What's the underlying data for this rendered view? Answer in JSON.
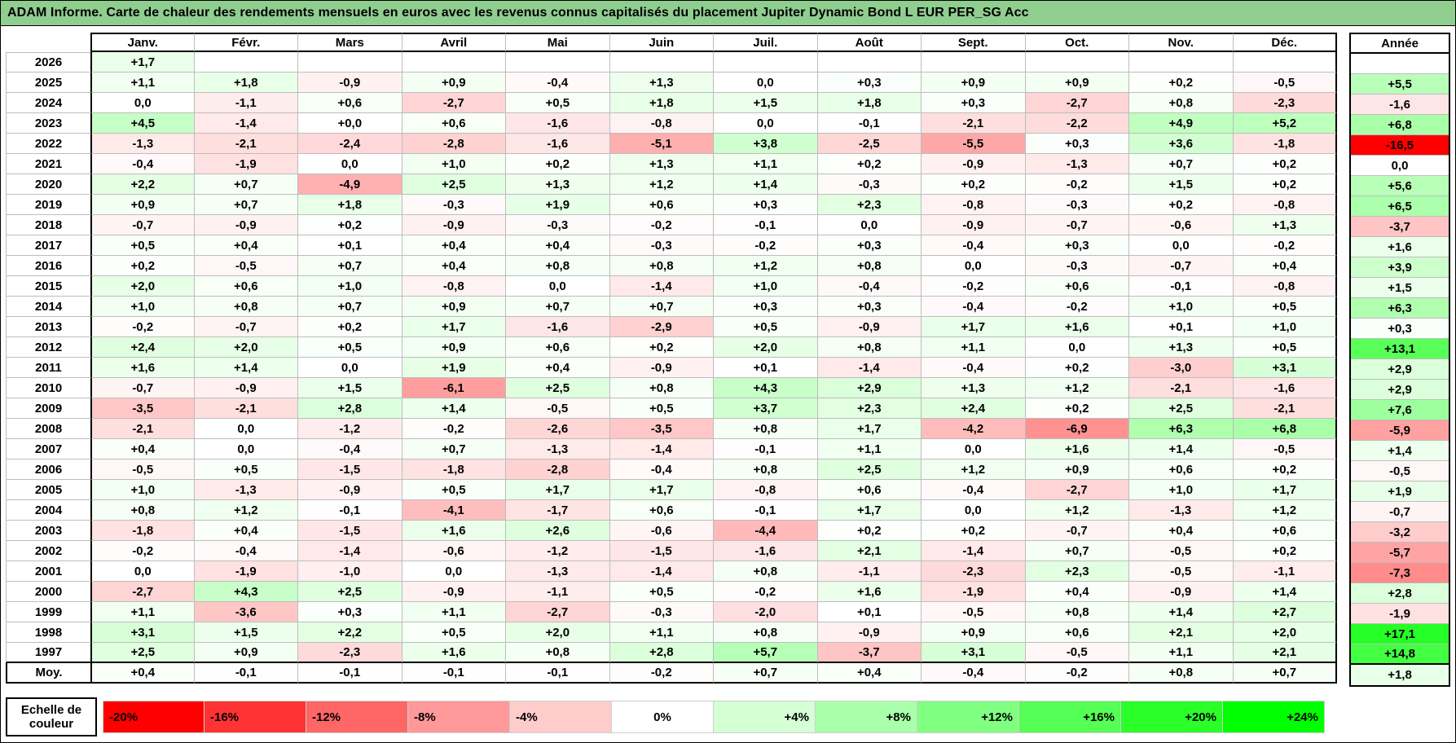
{
  "title": "ADAM Informe. Carte de chaleur des rendements mensuels en euros avec les revenus connus capitalisés du placement Jupiter Dynamic Bond L EUR PER_SG Acc",
  "table": {
    "months": [
      "Janv.",
      "Févr.",
      "Mars",
      "Avril",
      "Mai",
      "Juin",
      "Juil.",
      "Août",
      "Sept.",
      "Oct.",
      "Nov.",
      "Déc."
    ],
    "annee_header": "Année",
    "rows": [
      {
        "year": "2026",
        "values": [
          "+1,7",
          "",
          "",
          "",
          "",
          "",
          "",
          "",
          "",
          "",
          "",
          ""
        ],
        "annee": ""
      },
      {
        "year": "2025",
        "values": [
          "+1,1",
          "+1,8",
          "-0,9",
          "+0,9",
          "-0,4",
          "+1,3",
          "0,0",
          "+0,3",
          "+0,9",
          "+0,9",
          "+0,2",
          "-0,5"
        ],
        "annee": "+5,5"
      },
      {
        "year": "2024",
        "values": [
          "0,0",
          "-1,1",
          "+0,6",
          "-2,7",
          "+0,5",
          "+1,8",
          "+1,5",
          "+1,8",
          "+0,3",
          "-2,7",
          "+0,8",
          "-2,3"
        ],
        "annee": "-1,6"
      },
      {
        "year": "2023",
        "values": [
          "+4,5",
          "-1,4",
          "+0,0",
          "+0,6",
          "-1,6",
          "-0,8",
          "0,0",
          "-0,1",
          "-2,1",
          "-2,2",
          "+4,9",
          "+5,2"
        ],
        "annee": "+6,8"
      },
      {
        "year": "2022",
        "values": [
          "-1,3",
          "-2,1",
          "-2,4",
          "-2,8",
          "-1,6",
          "-5,1",
          "+3,8",
          "-2,5",
          "-5,5",
          "+0,3",
          "+3,6",
          "-1,8"
        ],
        "annee": "-16,5"
      },
      {
        "year": "2021",
        "values": [
          "-0,4",
          "-1,9",
          "0,0",
          "+1,0",
          "+0,2",
          "+1,3",
          "+1,1",
          "+0,2",
          "-0,9",
          "-1,3",
          "+0,7",
          "+0,2"
        ],
        "annee": "0,0"
      },
      {
        "year": "2020",
        "values": [
          "+2,2",
          "+0,7",
          "-4,9",
          "+2,5",
          "+1,3",
          "+1,2",
          "+1,4",
          "-0,3",
          "+0,2",
          "-0,2",
          "+1,5",
          "+0,2"
        ],
        "annee": "+5,6"
      },
      {
        "year": "2019",
        "values": [
          "+0,9",
          "+0,7",
          "+1,8",
          "-0,3",
          "+1,9",
          "+0,6",
          "+0,3",
          "+2,3",
          "-0,8",
          "-0,3",
          "+0,2",
          "-0,8"
        ],
        "annee": "+6,5"
      },
      {
        "year": "2018",
        "values": [
          "-0,7",
          "-0,9",
          "+0,2",
          "-0,9",
          "-0,3",
          "-0,2",
          "-0,1",
          "0,0",
          "-0,9",
          "-0,7",
          "-0,6",
          "+1,3"
        ],
        "annee": "-3,7"
      },
      {
        "year": "2017",
        "values": [
          "+0,5",
          "+0,4",
          "+0,1",
          "+0,4",
          "+0,4",
          "-0,3",
          "-0,2",
          "+0,3",
          "-0,4",
          "+0,3",
          "0,0",
          "-0,2"
        ],
        "annee": "+1,6"
      },
      {
        "year": "2016",
        "values": [
          "+0,2",
          "-0,5",
          "+0,7",
          "+0,4",
          "+0,8",
          "+0,8",
          "+1,2",
          "+0,8",
          "0,0",
          "-0,3",
          "-0,7",
          "+0,4"
        ],
        "annee": "+3,9"
      },
      {
        "year": "2015",
        "values": [
          "+2,0",
          "+0,6",
          "+1,0",
          "-0,8",
          "0,0",
          "-1,4",
          "+1,0",
          "-0,4",
          "-0,2",
          "+0,6",
          "-0,1",
          "-0,8"
        ],
        "annee": "+1,5"
      },
      {
        "year": "2014",
        "values": [
          "+1,0",
          "+0,8",
          "+0,7",
          "+0,9",
          "+0,7",
          "+0,7",
          "+0,3",
          "+0,3",
          "-0,4",
          "-0,2",
          "+1,0",
          "+0,5"
        ],
        "annee": "+6,3"
      },
      {
        "year": "2013",
        "values": [
          "-0,2",
          "-0,7",
          "+0,2",
          "+1,7",
          "-1,6",
          "-2,9",
          "+0,5",
          "-0,9",
          "+1,7",
          "+1,6",
          "+0,1",
          "+1,0"
        ],
        "annee": "+0,3"
      },
      {
        "year": "2012",
        "values": [
          "+2,4",
          "+2,0",
          "+0,5",
          "+0,9",
          "+0,6",
          "+0,2",
          "+2,0",
          "+0,8",
          "+1,1",
          "0,0",
          "+1,3",
          "+0,5"
        ],
        "annee": "+13,1"
      },
      {
        "year": "2011",
        "values": [
          "+1,6",
          "+1,4",
          "0,0",
          "+1,9",
          "+0,4",
          "-0,9",
          "+0,1",
          "-1,4",
          "-0,4",
          "+0,2",
          "-3,0",
          "+3,1"
        ],
        "annee": "+2,9"
      },
      {
        "year": "2010",
        "values": [
          "-0,7",
          "-0,9",
          "+1,5",
          "-6,1",
          "+2,5",
          "+0,8",
          "+4,3",
          "+2,9",
          "+1,3",
          "+1,2",
          "-2,1",
          "-1,6"
        ],
        "annee": "+2,9"
      },
      {
        "year": "2009",
        "values": [
          "-3,5",
          "-2,1",
          "+2,8",
          "+1,4",
          "-0,5",
          "+0,5",
          "+3,7",
          "+2,3",
          "+2,4",
          "+0,2",
          "+2,5",
          "-2,1"
        ],
        "annee": "+7,6"
      },
      {
        "year": "2008",
        "values": [
          "-2,1",
          "0,0",
          "-1,2",
          "-0,2",
          "-2,6",
          "-3,5",
          "+0,8",
          "+1,7",
          "-4,2",
          "-6,9",
          "+6,3",
          "+6,8"
        ],
        "annee": "-5,9"
      },
      {
        "year": "2007",
        "values": [
          "+0,4",
          "0,0",
          "-0,4",
          "+0,7",
          "-1,3",
          "-1,4",
          "-0,1",
          "+1,1",
          "0,0",
          "+1,6",
          "+1,4",
          "-0,5"
        ],
        "annee": "+1,4"
      },
      {
        "year": "2006",
        "values": [
          "-0,5",
          "+0,5",
          "-1,5",
          "-1,8",
          "-2,8",
          "-0,4",
          "+0,8",
          "+2,5",
          "+1,2",
          "+0,9",
          "+0,6",
          "+0,2"
        ],
        "annee": "-0,5"
      },
      {
        "year": "2005",
        "values": [
          "+1,0",
          "-1,3",
          "-0,9",
          "+0,5",
          "+1,7",
          "+1,7",
          "-0,8",
          "+0,6",
          "-0,4",
          "-2,7",
          "+1,0",
          "+1,7"
        ],
        "annee": "+1,9"
      },
      {
        "year": "2004",
        "values": [
          "+0,8",
          "+1,2",
          "-0,1",
          "-4,1",
          "-1,7",
          "+0,6",
          "-0,1",
          "+1,7",
          "0,0",
          "+1,2",
          "-1,3",
          "+1,2"
        ],
        "annee": "-0,7"
      },
      {
        "year": "2003",
        "values": [
          "-1,8",
          "+0,4",
          "-1,5",
          "+1,6",
          "+2,6",
          "-0,6",
          "-4,4",
          "+0,2",
          "+0,2",
          "-0,7",
          "+0,4",
          "+0,6"
        ],
        "annee": "-3,2"
      },
      {
        "year": "2002",
        "values": [
          "-0,2",
          "-0,4",
          "-1,4",
          "-0,6",
          "-1,2",
          "-1,5",
          "-1,6",
          "+2,1",
          "-1,4",
          "+0,7",
          "-0,5",
          "+0,2"
        ],
        "annee": "-5,7"
      },
      {
        "year": "2001",
        "values": [
          "0,0",
          "-1,9",
          "-1,0",
          "0,0",
          "-1,3",
          "-1,4",
          "+0,8",
          "-1,1",
          "-2,3",
          "+2,3",
          "-0,5",
          "-1,1"
        ],
        "annee": "-7,3"
      },
      {
        "year": "2000",
        "values": [
          "-2,7",
          "+4,3",
          "+2,5",
          "-0,9",
          "-1,1",
          "+0,5",
          "-0,2",
          "+1,6",
          "-1,9",
          "+0,4",
          "-0,9",
          "+1,4"
        ],
        "annee": "+2,8"
      },
      {
        "year": "1999",
        "values": [
          "+1,1",
          "-3,6",
          "+0,3",
          "+1,1",
          "-2,7",
          "-0,3",
          "-2,0",
          "+0,1",
          "-0,5",
          "+0,8",
          "+1,4",
          "+2,7"
        ],
        "annee": "-1,9"
      },
      {
        "year": "1998",
        "values": [
          "+3,1",
          "+1,5",
          "+2,2",
          "+0,5",
          "+2,0",
          "+1,1",
          "+0,8",
          "-0,9",
          "+0,9",
          "+0,6",
          "+2,1",
          "+2,0"
        ],
        "annee": "+17,1"
      },
      {
        "year": "1997",
        "values": [
          "+2,5",
          "+0,9",
          "-2,3",
          "+1,6",
          "+0,8",
          "+2,8",
          "+5,7",
          "-3,7",
          "+3,1",
          "-0,5",
          "+1,1",
          "+2,1"
        ],
        "annee": "+14,8"
      }
    ],
    "average_row": {
      "label": "Moy.",
      "values": [
        "+0,4",
        "-0,1",
        "-0,1",
        "-0,1",
        "-0,1",
        "-0,2",
        "+0,7",
        "+0,4",
        "-0,4",
        "-0,2",
        "+0,8",
        "+0,7"
      ],
      "annee": "+1,8"
    }
  },
  "legend": {
    "label": "Echelle de couleur",
    "cells": [
      {
        "label": "-20%",
        "value": -20
      },
      {
        "label": "-16%",
        "value": -16
      },
      {
        "label": "-12%",
        "value": -12
      },
      {
        "label": "-8%",
        "value": -8
      },
      {
        "label": "-4%",
        "value": -4
      },
      {
        "label": "0%",
        "value": 0
      },
      {
        "label": "+4%",
        "value": 4
      },
      {
        "label": "+8%",
        "value": 8
      },
      {
        "label": "+12%",
        "value": 12
      },
      {
        "label": "+16%",
        "value": 16
      },
      {
        "label": "+20%",
        "value": 20
      },
      {
        "label": "+24%",
        "value": 24
      }
    ]
  },
  "colors": {
    "title_bg": "#8FCE8F",
    "grid_line": "#bdbdbd",
    "negative_full": "#FF0000",
    "positive_full": "#00FF00",
    "table_scale": {
      "neg_max": 16,
      "pos_max": 20
    },
    "legend_scale": {
      "neg_max": 20,
      "pos_max": 24
    }
  },
  "chart_data": {
    "type": "heatmap",
    "title": "ADAM Informe. Carte de chaleur des rendements mensuels en euros avec les revenus connus capitalisés du placement Jupiter Dynamic Bond L EUR PER_SG Acc",
    "x_categories": [
      "Janv.",
      "Févr.",
      "Mars",
      "Avril",
      "Mai",
      "Juin",
      "Juil.",
      "Août",
      "Sept.",
      "Oct.",
      "Nov.",
      "Déc."
    ],
    "y_categories": [
      "2026",
      "2025",
      "2024",
      "2023",
      "2022",
      "2021",
      "2020",
      "2019",
      "2018",
      "2017",
      "2016",
      "2015",
      "2014",
      "2013",
      "2012",
      "2011",
      "2010",
      "2009",
      "2008",
      "2007",
      "2006",
      "2005",
      "2004",
      "2003",
      "2002",
      "2001",
      "2000",
      "1999",
      "1998",
      "1997",
      "Moy."
    ],
    "unit": "percent",
    "values": [
      [
        1.7,
        null,
        null,
        null,
        null,
        null,
        null,
        null,
        null,
        null,
        null,
        null
      ],
      [
        1.1,
        1.8,
        -0.9,
        0.9,
        -0.4,
        1.3,
        0.0,
        0.3,
        0.9,
        0.9,
        0.2,
        -0.5
      ],
      [
        0.0,
        -1.1,
        0.6,
        -2.7,
        0.5,
        1.8,
        1.5,
        1.8,
        0.3,
        -2.7,
        0.8,
        -2.3
      ],
      [
        4.5,
        -1.4,
        0.0,
        0.6,
        -1.6,
        -0.8,
        0.0,
        -0.1,
        -2.1,
        -2.2,
        4.9,
        5.2
      ],
      [
        -1.3,
        -2.1,
        -2.4,
        -2.8,
        -1.6,
        -5.1,
        3.8,
        -2.5,
        -5.5,
        0.3,
        3.6,
        -1.8
      ],
      [
        -0.4,
        -1.9,
        0.0,
        1.0,
        0.2,
        1.3,
        1.1,
        0.2,
        -0.9,
        -1.3,
        0.7,
        0.2
      ],
      [
        2.2,
        0.7,
        -4.9,
        2.5,
        1.3,
        1.2,
        1.4,
        -0.3,
        0.2,
        -0.2,
        1.5,
        0.2
      ],
      [
        0.9,
        0.7,
        1.8,
        -0.3,
        1.9,
        0.6,
        0.3,
        2.3,
        -0.8,
        -0.3,
        0.2,
        -0.8
      ],
      [
        -0.7,
        -0.9,
        0.2,
        -0.9,
        -0.3,
        -0.2,
        -0.1,
        0.0,
        -0.9,
        -0.7,
        -0.6,
        1.3
      ],
      [
        0.5,
        0.4,
        0.1,
        0.4,
        0.4,
        -0.3,
        -0.2,
        0.3,
        -0.4,
        0.3,
        0.0,
        -0.2
      ],
      [
        0.2,
        -0.5,
        0.7,
        0.4,
        0.8,
        0.8,
        1.2,
        0.8,
        0.0,
        -0.3,
        -0.7,
        0.4
      ],
      [
        2.0,
        0.6,
        1.0,
        -0.8,
        0.0,
        -1.4,
        1.0,
        -0.4,
        -0.2,
        0.6,
        -0.1,
        -0.8
      ],
      [
        1.0,
        0.8,
        0.7,
        0.9,
        0.7,
        0.7,
        0.3,
        0.3,
        -0.4,
        -0.2,
        1.0,
        0.5
      ],
      [
        -0.2,
        -0.7,
        0.2,
        1.7,
        -1.6,
        -2.9,
        0.5,
        -0.9,
        1.7,
        1.6,
        0.1,
        1.0
      ],
      [
        2.4,
        2.0,
        0.5,
        0.9,
        0.6,
        0.2,
        2.0,
        0.8,
        1.1,
        0.0,
        1.3,
        0.5
      ],
      [
        1.6,
        1.4,
        0.0,
        1.9,
        0.4,
        -0.9,
        0.1,
        -1.4,
        -0.4,
        0.2,
        -3.0,
        3.1
      ],
      [
        -0.7,
        -0.9,
        1.5,
        -6.1,
        2.5,
        0.8,
        4.3,
        2.9,
        1.3,
        1.2,
        -2.1,
        -1.6
      ],
      [
        -3.5,
        -2.1,
        2.8,
        1.4,
        -0.5,
        0.5,
        3.7,
        2.3,
        2.4,
        0.2,
        2.5,
        -2.1
      ],
      [
        -2.1,
        0.0,
        -1.2,
        -0.2,
        -2.6,
        -3.5,
        0.8,
        1.7,
        -4.2,
        -6.9,
        6.3,
        6.8
      ],
      [
        0.4,
        0.0,
        -0.4,
        0.7,
        -1.3,
        -1.4,
        -0.1,
        1.1,
        0.0,
        1.6,
        1.4,
        -0.5
      ],
      [
        -0.5,
        0.5,
        -1.5,
        -1.8,
        -2.8,
        -0.4,
        0.8,
        2.5,
        1.2,
        0.9,
        0.6,
        0.2
      ],
      [
        1.0,
        -1.3,
        -0.9,
        0.5,
        1.7,
        1.7,
        -0.8,
        0.6,
        -0.4,
        -2.7,
        1.0,
        1.7
      ],
      [
        0.8,
        1.2,
        -0.1,
        -4.1,
        -1.7,
        0.6,
        -0.1,
        1.7,
        0.0,
        1.2,
        -1.3,
        1.2
      ],
      [
        -1.8,
        0.4,
        -1.5,
        1.6,
        2.6,
        -0.6,
        -4.4,
        0.2,
        0.2,
        -0.7,
        0.4,
        0.6
      ],
      [
        -0.2,
        -0.4,
        -1.4,
        -0.6,
        -1.2,
        -1.5,
        -1.6,
        2.1,
        -1.4,
        0.7,
        -0.5,
        0.2
      ],
      [
        0.0,
        -1.9,
        -1.0,
        0.0,
        -1.3,
        -1.4,
        0.8,
        -1.1,
        -2.3,
        2.3,
        -0.5,
        -1.1
      ],
      [
        -2.7,
        4.3,
        2.5,
        -0.9,
        -1.1,
        0.5,
        -0.2,
        1.6,
        -1.9,
        0.4,
        -0.9,
        1.4
      ],
      [
        1.1,
        -3.6,
        0.3,
        1.1,
        -2.7,
        -0.3,
        -2.0,
        0.1,
        -0.5,
        0.8,
        1.4,
        2.7
      ],
      [
        3.1,
        1.5,
        2.2,
        0.5,
        2.0,
        1.1,
        0.8,
        -0.9,
        0.9,
        0.6,
        2.1,
        2.0
      ],
      [
        2.5,
        0.9,
        -2.3,
        1.6,
        0.8,
        2.8,
        5.7,
        -3.7,
        3.1,
        -0.5,
        1.1,
        2.1
      ],
      [
        0.4,
        -0.1,
        -0.1,
        -0.1,
        -0.1,
        -0.2,
        0.7,
        0.4,
        -0.4,
        -0.2,
        0.8,
        0.7
      ]
    ],
    "annual_values": [
      null,
      5.5,
      -1.6,
      6.8,
      -16.5,
      0.0,
      5.6,
      6.5,
      -3.7,
      1.6,
      3.9,
      1.5,
      6.3,
      0.3,
      13.1,
      2.9,
      2.9,
      7.6,
      -5.9,
      1.4,
      -0.5,
      1.9,
      -0.7,
      -3.2,
      -5.7,
      -7.3,
      2.8,
      -1.9,
      17.1,
      14.8,
      1.8
    ],
    "color_scale": {
      "negative_extreme": -20,
      "positive_extreme": 24,
      "zero_color": "#FFFFFF",
      "negative_color": "#FF0000",
      "positive_color": "#00FF00",
      "legend_position": "bottom"
    }
  }
}
